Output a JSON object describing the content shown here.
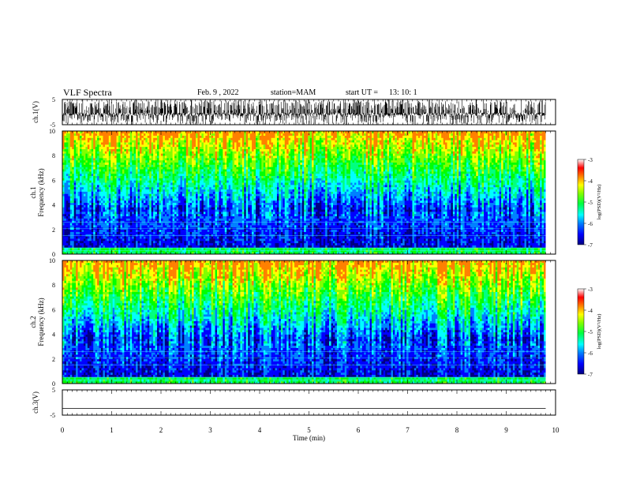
{
  "header": {
    "title": "VLF Spectra",
    "date": "Feb. 9 , 2022",
    "station": "station=MAM",
    "start_label": "start UT =",
    "start_time": "13: 10: 1"
  },
  "colors": {
    "spectrogram_scale": [
      "#000080",
      "#0000ff",
      "#0080ff",
      "#00ffff",
      "#00ff80",
      "#00ff00",
      "#80ff00",
      "#ffff00",
      "#ff8000",
      "#ff0000",
      "#ffffff"
    ]
  },
  "chart_data": [
    {
      "type": "line",
      "name": "ch1-waveform",
      "ylabel": "ch.1(V)",
      "ylim": [
        -5,
        5
      ],
      "yticks": [
        "5",
        "-5"
      ],
      "xlim": [
        0,
        10
      ],
      "description_of_signal": "dense bursty waveform spanning full range"
    },
    {
      "type": "heatmap",
      "name": "ch1-spectrogram",
      "ylabel": "ch.1 Frequency (kHz)",
      "ylim": [
        0,
        10
      ],
      "yticks": [
        "0",
        "2",
        "4",
        "6",
        "8",
        "10"
      ],
      "xlim": [
        0,
        9.8
      ],
      "colorbar": {
        "label": "log(PSD)(V²/Hz)",
        "range": [
          -7,
          -3
        ],
        "ticks": [
          "-3",
          "-4",
          "-5",
          "-6",
          "-7"
        ]
      }
    },
    {
      "type": "heatmap",
      "name": "ch2-spectrogram",
      "ylabel": "ch.2 Frequency (kHz)",
      "ylim": [
        0,
        10
      ],
      "yticks": [
        "0",
        "2",
        "4",
        "6",
        "8",
        "10"
      ],
      "xlim": [
        0,
        9.8
      ],
      "colorbar": {
        "label": "log(PSD)(V²/Hz)",
        "range": [
          -7,
          -3
        ],
        "ticks": [
          "-3",
          "-4",
          "-5",
          "-6",
          "-7"
        ]
      }
    },
    {
      "type": "line",
      "name": "ch3-waveform",
      "ylabel": "ch.3(V)",
      "ylim": [
        -5,
        5
      ],
      "yticks": [
        "5",
        "-5"
      ],
      "x": [
        0,
        9.8
      ],
      "y": [
        -2.3,
        -2.3
      ]
    }
  ],
  "xaxis": {
    "label": "Time (min)",
    "range": [
      0,
      10
    ],
    "ticks": [
      "0",
      "1",
      "2",
      "3",
      "4",
      "5",
      "6",
      "7",
      "8",
      "9",
      "10"
    ]
  }
}
